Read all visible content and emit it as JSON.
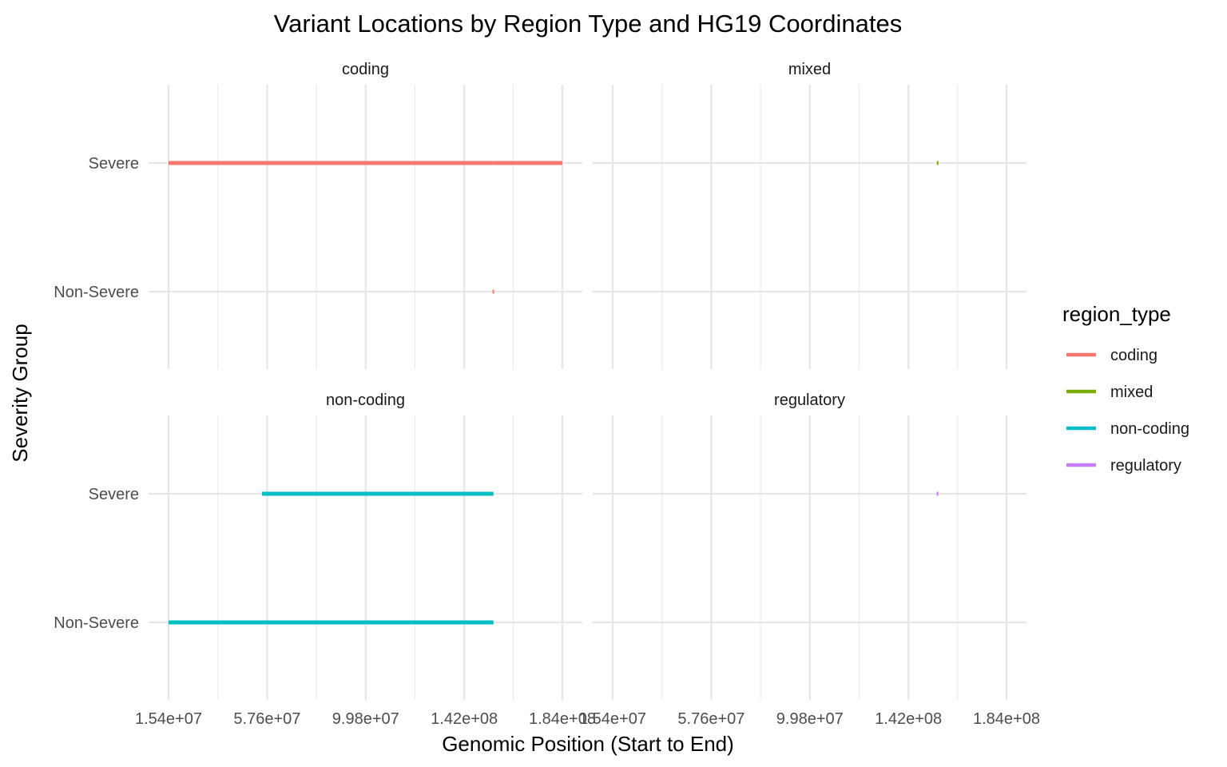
{
  "chart_data": {
    "type": "segment",
    "title": "Variant Locations by Region Type and HG19 Coordinates",
    "xlabel": "Genomic Position (Start to End)",
    "ylabel": "Severity Group",
    "xlim": [
      15400000,
      184000000
    ],
    "x_ticks": [
      15400000,
      57600000,
      99800000,
      142000000,
      184000000
    ],
    "x_tick_labels": [
      "1.54e+07",
      "5.76e+07",
      "9.98e+07",
      "1.42e+08",
      "1.84e+08"
    ],
    "y_categories": [
      "Severe",
      "Non-Severe"
    ],
    "grid": true,
    "legend": {
      "title": "region_type",
      "position": "right",
      "items": [
        {
          "label": "coding",
          "color": "#F8766D"
        },
        {
          "label": "mixed",
          "color": "#7CAE00"
        },
        {
          "label": "non-coding",
          "color": "#00BFC4"
        },
        {
          "label": "regulatory",
          "color": "#C77CFF"
        }
      ]
    },
    "panels": [
      {
        "label": "coding",
        "color": "#F8766D",
        "segments": [
          {
            "group": "Severe",
            "start": 15400000,
            "end": 154500000
          },
          {
            "group": "Severe",
            "start": 154500000,
            "end": 184000000
          },
          {
            "group": "Non-Severe",
            "start": 154300000,
            "end": 154600000
          }
        ]
      },
      {
        "label": "mixed",
        "color": "#7CAE00",
        "segments": [
          {
            "group": "Severe",
            "start": 154200000,
            "end": 154800000
          }
        ]
      },
      {
        "label": "non-coding",
        "color": "#00BFC4",
        "segments": [
          {
            "group": "Severe",
            "start": 55400000,
            "end": 154500000
          },
          {
            "group": "Non-Severe",
            "start": 15400000,
            "end": 154500000
          }
        ]
      },
      {
        "label": "regulatory",
        "color": "#C77CFF",
        "segments": [
          {
            "group": "Severe",
            "start": 154300000,
            "end": 154600000
          }
        ]
      }
    ]
  }
}
